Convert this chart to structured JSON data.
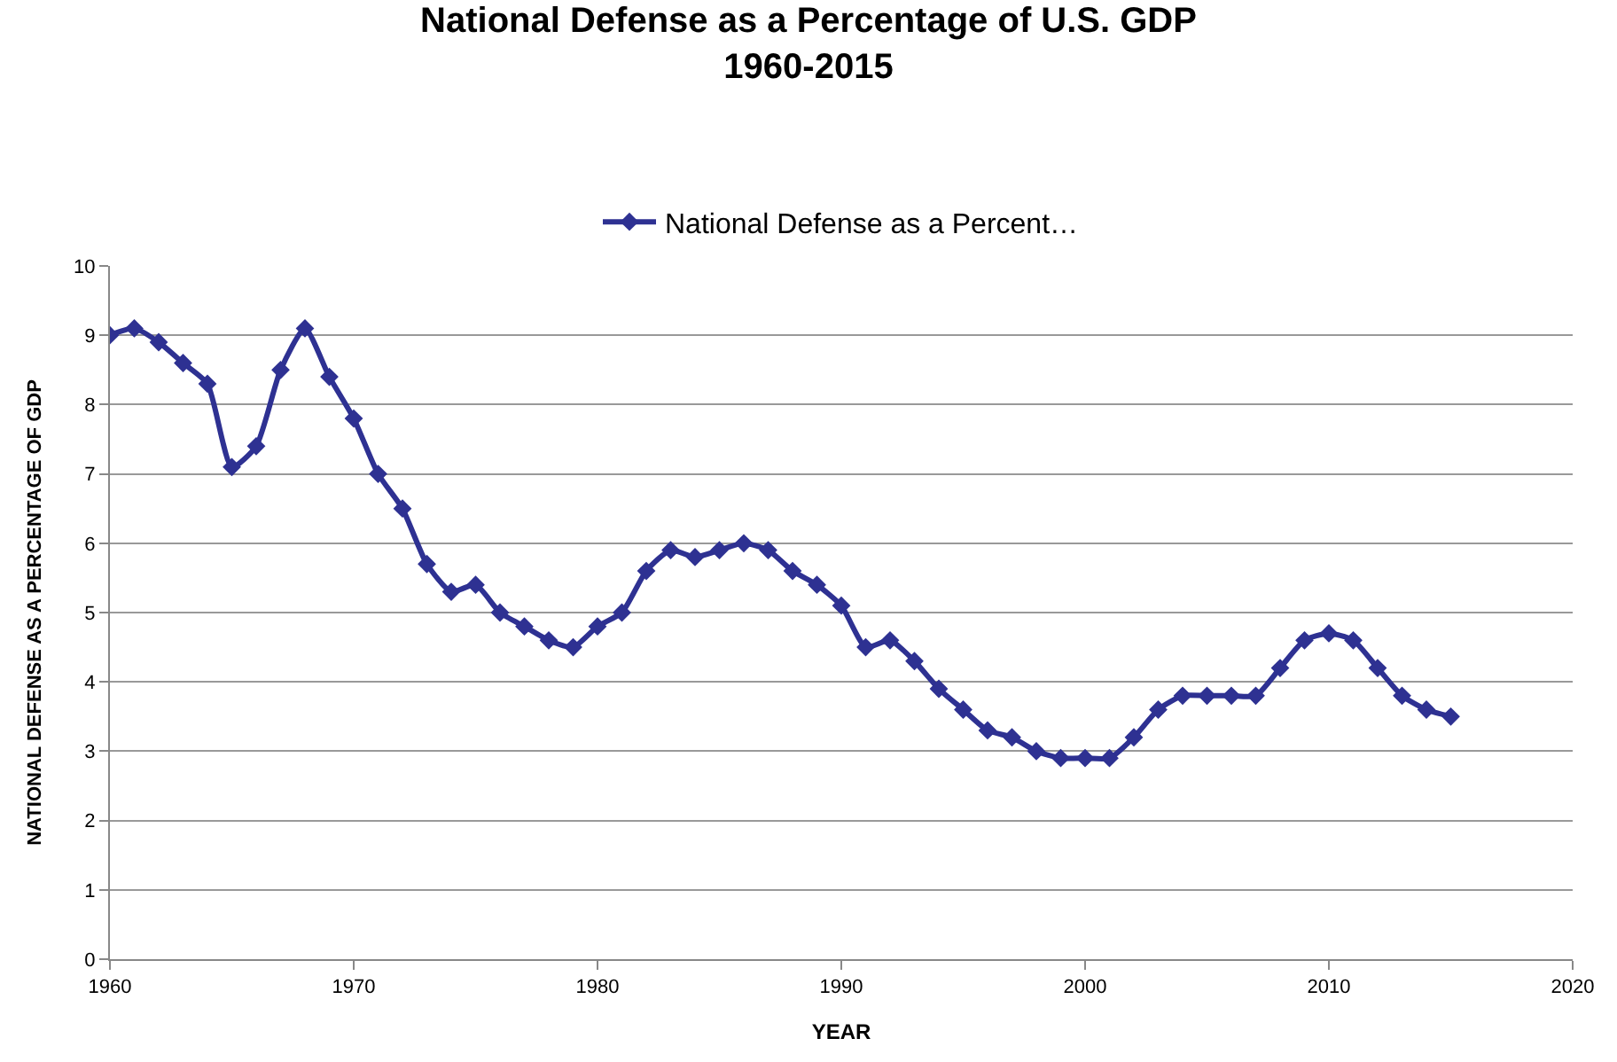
{
  "chart_data": {
    "type": "line",
    "title": "National Defense as a Percentage of U.S. GDP",
    "subtitle": "1960-2015",
    "xlabel": "YEAR",
    "ylabel": "NATIONAL DEFENSE AS A PERCENTAGE OF GDP",
    "x": [
      1960,
      1961,
      1962,
      1963,
      1964,
      1965,
      1966,
      1967,
      1968,
      1969,
      1970,
      1971,
      1972,
      1973,
      1974,
      1975,
      1976,
      1977,
      1978,
      1979,
      1980,
      1981,
      1982,
      1983,
      1984,
      1985,
      1986,
      1987,
      1988,
      1989,
      1990,
      1991,
      1992,
      1993,
      1994,
      1995,
      1996,
      1997,
      1998,
      1999,
      2000,
      2001,
      2002,
      2003,
      2004,
      2005,
      2006,
      2007,
      2008,
      2009,
      2010,
      2011,
      2012,
      2013,
      2014,
      2015
    ],
    "series": [
      {
        "name": "National Defense as a Percent…",
        "color": "#2e3192",
        "values": [
          9.0,
          9.1,
          8.9,
          8.6,
          8.3,
          7.1,
          7.4,
          8.5,
          9.1,
          8.4,
          7.8,
          7.0,
          6.5,
          5.7,
          5.3,
          5.4,
          5.0,
          4.8,
          4.6,
          4.5,
          4.8,
          5.0,
          5.6,
          5.9,
          5.8,
          5.9,
          6.0,
          5.9,
          5.6,
          5.4,
          5.1,
          4.5,
          4.6,
          4.3,
          3.9,
          3.6,
          3.3,
          3.2,
          3.0,
          2.9,
          2.9,
          2.9,
          3.2,
          3.6,
          3.8,
          3.8,
          3.8,
          3.8,
          4.2,
          4.6,
          4.7,
          4.6,
          4.2,
          3.8,
          3.6,
          3.5
        ]
      }
    ],
    "xlim": [
      1960,
      2020
    ],
    "xticks": [
      1960,
      1970,
      1980,
      1990,
      2000,
      2010,
      2020
    ],
    "ylim": [
      0,
      10
    ],
    "yticks": [
      0,
      1,
      2,
      3,
      4,
      5,
      6,
      7,
      8,
      9,
      10
    ],
    "grid": "y",
    "legend": "top",
    "marker": "diamond",
    "line_style": "solid"
  }
}
